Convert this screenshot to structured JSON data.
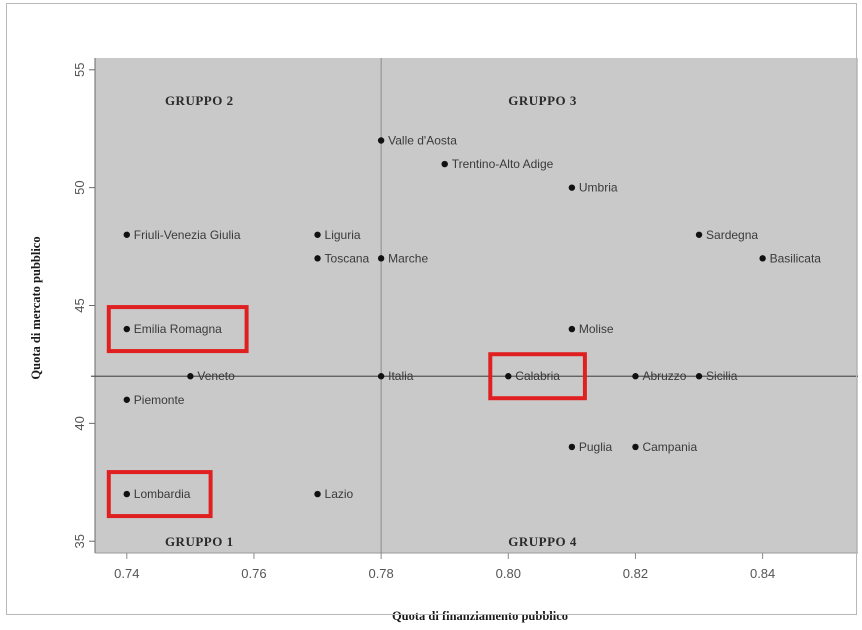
{
  "chart_data": {
    "type": "scatter",
    "title": "",
    "xlabel": "Quota di finanziamento pubblico",
    "ylabel": "Quota di mercato pubblico",
    "xlim": [
      0.735,
      0.855
    ],
    "ylim": [
      34.5,
      55.5
    ],
    "x_ticks": [
      0.74,
      0.76,
      0.78,
      0.8,
      0.82,
      0.84
    ],
    "x_tick_labels": [
      "0.74",
      "0.76",
      "0.78",
      "0.80",
      "0.82",
      "0.84"
    ],
    "y_ticks": [
      35,
      40,
      45,
      50,
      55
    ],
    "y_tick_labels": [
      "35",
      "40",
      "45",
      "50",
      "55"
    ],
    "reference_lines": {
      "x": 0.78,
      "y": 42
    },
    "group_labels": [
      {
        "text": "GRUPPO 2",
        "x": 0.746,
        "y": 53.5
      },
      {
        "text": "GRUPPO 3",
        "x": 0.8,
        "y": 53.5
      },
      {
        "text": "GRUPPO 1",
        "x": 0.746,
        "y": 34.8
      },
      {
        "text": "GRUPPO 4",
        "x": 0.8,
        "y": 34.8
      }
    ],
    "points": [
      {
        "label": "Valle d'Aosta",
        "x": 0.78,
        "y": 52
      },
      {
        "label": "Trentino-Alto Adige",
        "x": 0.79,
        "y": 51
      },
      {
        "label": "Umbria",
        "x": 0.81,
        "y": 50
      },
      {
        "label": "Friuli-Venezia Giulia",
        "x": 0.74,
        "y": 48
      },
      {
        "label": "Liguria",
        "x": 0.77,
        "y": 48
      },
      {
        "label": "Toscana",
        "x": 0.77,
        "y": 47
      },
      {
        "label": "Marche",
        "x": 0.78,
        "y": 47
      },
      {
        "label": "Sardegna",
        "x": 0.83,
        "y": 48
      },
      {
        "label": "Basilicata",
        "x": 0.84,
        "y": 47
      },
      {
        "label": "Emilia Romagna",
        "x": 0.74,
        "y": 44
      },
      {
        "label": "Molise",
        "x": 0.81,
        "y": 44
      },
      {
        "label": "Veneto",
        "x": 0.75,
        "y": 42
      },
      {
        "label": "Italia",
        "x": 0.78,
        "y": 42
      },
      {
        "label": "Calabria",
        "x": 0.8,
        "y": 42
      },
      {
        "label": "Abruzzo",
        "x": 0.82,
        "y": 42
      },
      {
        "label": "Sicilia",
        "x": 0.83,
        "y": 42
      },
      {
        "label": "Piemonte",
        "x": 0.74,
        "y": 41
      },
      {
        "label": "Puglia",
        "x": 0.81,
        "y": 39
      },
      {
        "label": "Campania",
        "x": 0.82,
        "y": 39
      },
      {
        "label": "Lombardia",
        "x": 0.74,
        "y": 37
      },
      {
        "label": "Lazio",
        "x": 0.77,
        "y": 37
      }
    ],
    "highlighted": [
      "Emilia Romagna",
      "Calabria",
      "Lombardia"
    ],
    "highlight_color": "#e02020",
    "background_color": "#c9c9c9",
    "point_color": "#111111",
    "grid": false
  }
}
